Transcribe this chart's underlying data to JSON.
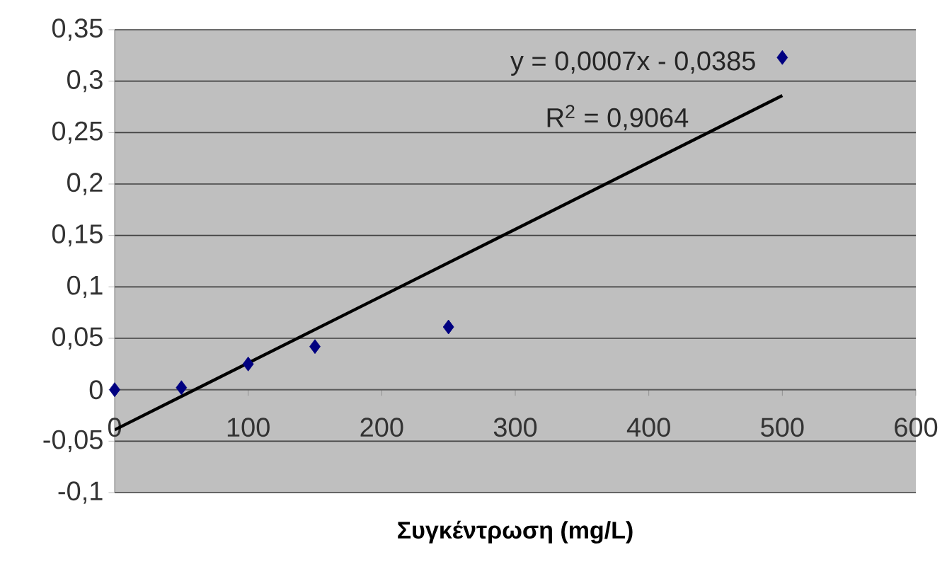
{
  "chart_data": {
    "type": "scatter",
    "xlabel": "Συγκέντρωση (mg/L)",
    "x": [
      0,
      50,
      100,
      150,
      250,
      500
    ],
    "series": [
      {
        "color": "#000080",
        "marker": "diamond",
        "values": [
          0,
          0.002,
          0.025,
          0.042,
          0.061,
          0.323
        ]
      },
      {
        "type": "line",
        "color": "#000000",
        "marker": "none",
        "x": [
          0,
          500
        ],
        "values": [
          -0.039,
          0.286
        ]
      }
    ],
    "annotations": [
      "y = 0,0007x - 0,0385",
      "R$^{2}$ = 0,9064"
    ],
    "xlim": [
      0,
      600
    ],
    "xticks": [
      0,
      100,
      200,
      300,
      400,
      500,
      600
    ],
    "ylim": [
      -0.1,
      0.35
    ],
    "yticks": [
      {
        "value": -0.1,
        "label": "-0,1"
      },
      {
        "value": -0.05,
        "label": "-0,05"
      },
      {
        "value": 0,
        "label": "0"
      },
      {
        "value": 0.05,
        "label": "0,05"
      },
      {
        "value": 0.1,
        "label": "0,1"
      },
      {
        "value": 0.15,
        "label": "0,15"
      },
      {
        "value": 0.2,
        "label": "0,2"
      },
      {
        "value": 0.25,
        "label": "0,25"
      },
      {
        "value": 0.3,
        "label": "0,3"
      },
      {
        "value": 0.35,
        "label": "0,35"
      }
    ],
    "grid": "y"
  }
}
